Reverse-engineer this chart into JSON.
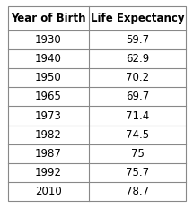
{
  "col_headers": [
    "Year of Birth",
    "Life Expectancy"
  ],
  "rows": [
    [
      "1930",
      "59.7"
    ],
    [
      "1940",
      "62.9"
    ],
    [
      "1950",
      "70.2"
    ],
    [
      "1965",
      "69.7"
    ],
    [
      "1973",
      "71.4"
    ],
    [
      "1982",
      "74.5"
    ],
    [
      "1987",
      "75"
    ],
    [
      "1992",
      "75.7"
    ],
    [
      "2010",
      "78.7"
    ]
  ],
  "header_bg": "#ffffff",
  "cell_bg": "#ffffff",
  "border_color": "#888888",
  "text_color": "#000000",
  "header_fontsize": 8.5,
  "cell_fontsize": 8.5,
  "fig_bg": "#ffffff",
  "fig_width": 2.16,
  "fig_height": 2.33,
  "dpi": 100
}
